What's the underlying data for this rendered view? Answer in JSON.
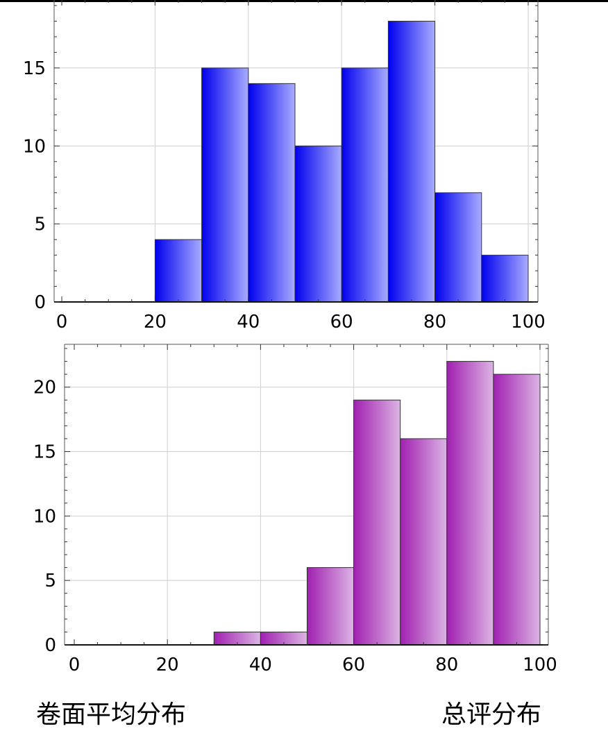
{
  "chart_data": [
    {
      "type": "bar",
      "title": "",
      "xlabel": "",
      "ylabel": "",
      "bin_edges": [
        0,
        10,
        20,
        30,
        40,
        50,
        60,
        70,
        80,
        90,
        100
      ],
      "values": [
        0,
        0,
        4,
        15,
        14,
        10,
        15,
        18,
        7,
        3
      ],
      "xlim": [
        0,
        100
      ],
      "ylim": [
        0,
        19
      ],
      "x_ticks": [
        0,
        20,
        40,
        60,
        80,
        100
      ],
      "y_ticks": [
        0,
        5,
        10,
        15
      ],
      "grid": true,
      "color": "#0000ee",
      "color_light": "#a8acff"
    },
    {
      "type": "bar",
      "title": "",
      "xlabel": "",
      "ylabel": "",
      "bin_edges": [
        0,
        10,
        20,
        30,
        40,
        50,
        60,
        70,
        80,
        90,
        100
      ],
      "values": [
        0,
        0,
        0,
        1,
        1,
        6,
        19,
        16,
        22,
        21
      ],
      "xlim": [
        0,
        100
      ],
      "ylim": [
        0,
        23
      ],
      "x_ticks": [
        0,
        20,
        40,
        60,
        80,
        100
      ],
      "y_ticks": [
        0,
        5,
        10,
        15,
        20
      ],
      "grid": true,
      "color": "#a020b0",
      "color_light": "#dcb4e4"
    }
  ],
  "captions": {
    "left": "卷面平均分布",
    "right": "总评分布"
  }
}
